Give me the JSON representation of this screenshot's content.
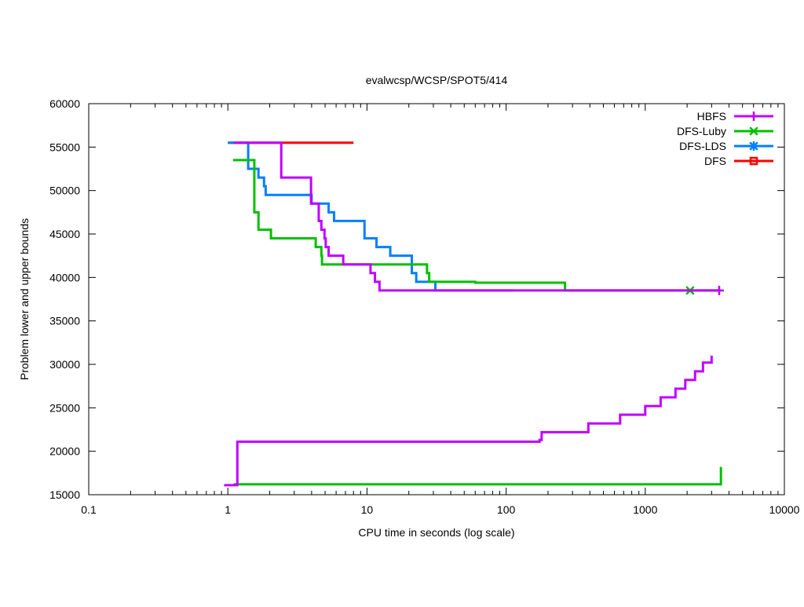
{
  "chart_data": {
    "type": "line",
    "title": "evalwcsp/WCSP/SPOT5/414",
    "xlabel": "CPU time in seconds (log scale)",
    "ylabel": "Problem lower and upper bounds",
    "xscale": "log",
    "xlim": [
      0.1,
      10000
    ],
    "ylim": [
      15000,
      60000
    ],
    "xticks": [
      0.1,
      1,
      10,
      100,
      1000,
      10000
    ],
    "xtick_labels": [
      "0.1",
      "1",
      "10",
      "100",
      "1000",
      "10000"
    ],
    "yticks": [
      15000,
      20000,
      25000,
      30000,
      35000,
      40000,
      45000,
      50000,
      55000,
      60000
    ],
    "ytick_labels": [
      "15000",
      "20000",
      "25000",
      "30000",
      "35000",
      "40000",
      "45000",
      "50000",
      "55000",
      "60000"
    ],
    "grid": false,
    "legend_position": "top-right",
    "line_style": "steps",
    "series": [
      {
        "name": "HBFS",
        "color": "#c000ff",
        "marker": "plus",
        "marker_at": 3400,
        "upper": [
          [
            1.1,
            55500
          ],
          [
            2.42,
            51500
          ],
          [
            3.96,
            48500
          ],
          [
            4.5,
            46500
          ],
          [
            4.7,
            45500
          ],
          [
            4.95,
            44500
          ],
          [
            5.05,
            43500
          ],
          [
            5.3,
            42500
          ],
          [
            6.75,
            41500
          ],
          [
            10.6,
            40500
          ],
          [
            11.4,
            39500
          ],
          [
            12.3,
            38500
          ],
          [
            3400,
            38500
          ]
        ],
        "lower": [
          [
            0.94,
            16100
          ],
          [
            1.17,
            21100
          ],
          [
            174,
            21300
          ],
          [
            180,
            22200
          ],
          [
            390,
            23200
          ],
          [
            660,
            24200
          ],
          [
            1000,
            25200
          ],
          [
            1290,
            26200
          ],
          [
            1650,
            27200
          ],
          [
            1940,
            28200
          ],
          [
            2280,
            29200
          ],
          [
            2600,
            30200
          ],
          [
            3000,
            31000
          ]
        ]
      },
      {
        "name": "DFS-Luby",
        "color": "#00c000",
        "marker": "cross",
        "marker_at": 2100,
        "upper": [
          [
            1.09,
            53500
          ],
          [
            1.55,
            47500
          ],
          [
            1.66,
            45500
          ],
          [
            2.04,
            44500
          ],
          [
            4.28,
            43500
          ],
          [
            4.7,
            42500
          ],
          [
            4.75,
            41500
          ],
          [
            27,
            40500
          ],
          [
            28,
            39500
          ],
          [
            60,
            39400
          ],
          [
            265,
            38500
          ],
          [
            3500,
            38500
          ]
        ],
        "lower": [
          [
            1.1,
            16200
          ],
          [
            3500,
            18200
          ]
        ]
      },
      {
        "name": "DFS-LDS",
        "color": "#0080ff",
        "marker": "star",
        "upper": [
          [
            1.0,
            55500
          ],
          [
            1.4,
            52500
          ],
          [
            1.66,
            51500
          ],
          [
            1.82,
            50500
          ],
          [
            1.87,
            49500
          ],
          [
            4.0,
            48500
          ],
          [
            5.3,
            47500
          ],
          [
            5.8,
            46500
          ],
          [
            9.6,
            44500
          ],
          [
            11.7,
            43500
          ],
          [
            14.7,
            42500
          ],
          [
            21,
            40500
          ],
          [
            22.6,
            39500
          ],
          [
            31,
            38500
          ],
          [
            112,
            38500
          ]
        ]
      },
      {
        "name": "DFS",
        "color": "#ff0000",
        "marker": "square",
        "upper": [
          [
            1.0,
            55500
          ],
          [
            8.0,
            55500
          ]
        ]
      }
    ]
  }
}
